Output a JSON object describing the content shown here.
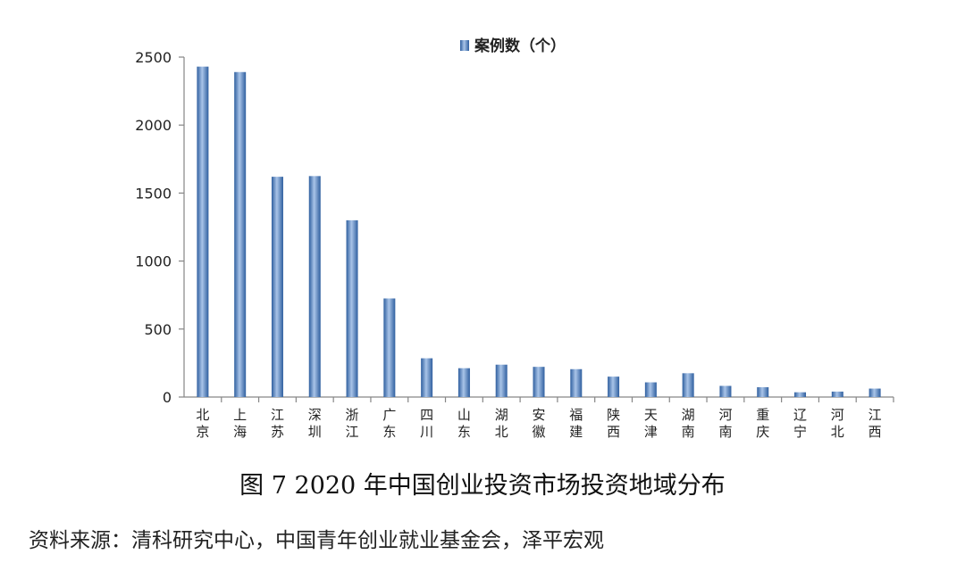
{
  "chart_data": {
    "type": "bar",
    "categories": [
      "北京",
      "上海",
      "江苏",
      "深圳",
      "浙江",
      "广东",
      "四川",
      "山东",
      "湖北",
      "安徽",
      "福建",
      "陕西",
      "天津",
      "湖南",
      "河南",
      "重庆",
      "辽宁",
      "河北",
      "江西"
    ],
    "series": [
      {
        "name": "案例数（个）",
        "values": [
          2430,
          2390,
          1620,
          1625,
          1300,
          725,
          285,
          212,
          238,
          222,
          205,
          150,
          108,
          175,
          82,
          72,
          35,
          40,
          62
        ]
      }
    ],
    "ylim": [
      0,
      2500
    ],
    "yticks": [
      "0",
      "500",
      "1000",
      "1500",
      "2000",
      "2500"
    ],
    "ytick_values": [
      0,
      500,
      1000,
      1500,
      2000,
      2500
    ],
    "grid": false,
    "legend": "top-center",
    "colors": {
      "bar_light": "#a9c4e8",
      "bar_mid": "#5b8bd0",
      "bar_dark": "#2f5f9f",
      "axis": "#868686"
    }
  },
  "caption": "图 7 2020 年中国创业投资市场投资地域分布",
  "source": "资料来源：清科研究中心，中国青年创业就业基金会，泽平宏观"
}
